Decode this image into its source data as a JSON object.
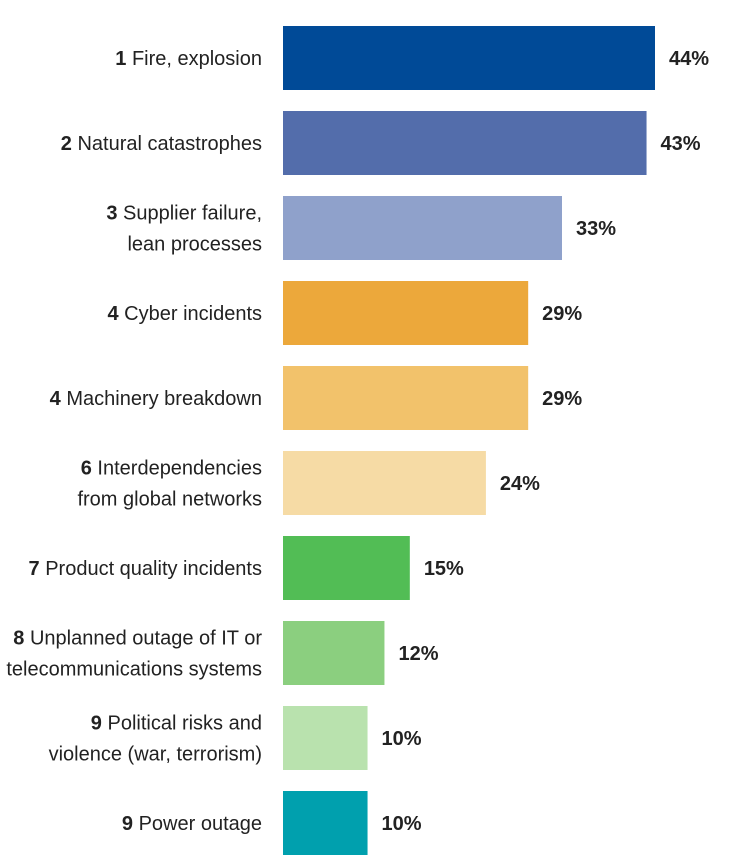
{
  "chart_data": {
    "type": "bar",
    "orientation": "horizontal",
    "title": "",
    "xlabel": "",
    "ylabel": "",
    "xlim": [
      0,
      44
    ],
    "grid": false,
    "categories": [
      {
        "rank": "1",
        "lines": [
          "Fire, explosion"
        ]
      },
      {
        "rank": "2",
        "lines": [
          "Natural catastrophes"
        ]
      },
      {
        "rank": "3",
        "lines": [
          "Supplier failure,",
          "lean processes"
        ]
      },
      {
        "rank": "4",
        "lines": [
          "Cyber incidents"
        ]
      },
      {
        "rank": "4",
        "lines": [
          "Machinery breakdown"
        ]
      },
      {
        "rank": "6",
        "lines": [
          "Interdependencies",
          "from global networks"
        ]
      },
      {
        "rank": "7",
        "lines": [
          "Product quality incidents"
        ]
      },
      {
        "rank": "8",
        "lines": [
          "Unplanned outage of IT or",
          "telecommunications systems"
        ]
      },
      {
        "rank": "9",
        "lines": [
          "Political risks and",
          "violence (war, terrorism)"
        ]
      },
      {
        "rank": "9",
        "lines": [
          "Power outage"
        ]
      }
    ],
    "values": [
      44,
      43,
      33,
      29,
      29,
      24,
      15,
      12,
      10,
      10
    ],
    "value_labels": [
      "44%",
      "43%",
      "33%",
      "29%",
      "29%",
      "24%",
      "15%",
      "12%",
      "10%",
      "10%"
    ],
    "colors": [
      "#004a97",
      "#536dab",
      "#8fa1cb",
      "#eca83b",
      "#f2c26b",
      "#f6dba5",
      "#52bd55",
      "#8bcf7f",
      "#b9e2ae",
      "#00a0ae"
    ]
  }
}
